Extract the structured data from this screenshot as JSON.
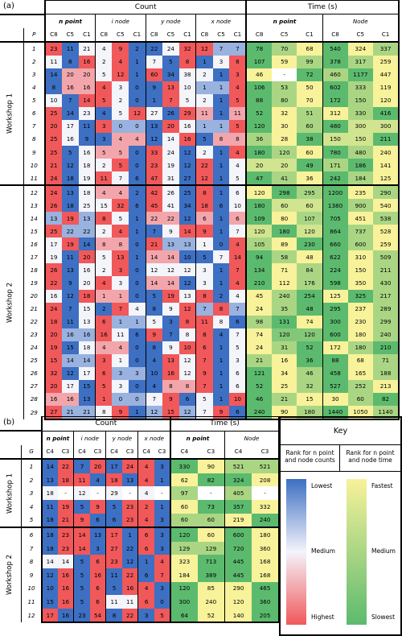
{
  "panel_a": {
    "label": "(a)",
    "count_header": "Count",
    "time_header": "Time (s)",
    "groups": [
      "n point",
      "i node",
      "y node",
      "x node",
      "n point",
      "Node"
    ],
    "P": "P",
    "cols": [
      "C8",
      "C5",
      "C1"
    ],
    "workshops": [
      "Workshop 1",
      "Workshop 2"
    ],
    "rows": [
      [
        "1",
        23,
        11,
        21,
        4,
        9,
        2,
        22,
        24,
        32,
        12,
        7,
        7,
        78,
        70,
        68,
        540,
        324,
        337
      ],
      [
        "2",
        11,
        8,
        16,
        2,
        4,
        1,
        7,
        5,
        8,
        1,
        3,
        8,
        107,
        59,
        99,
        378,
        317,
        259
      ],
      [
        "3",
        14,
        20,
        20,
        5,
        12,
        1,
        60,
        34,
        38,
        2,
        1,
        3,
        46,
        "-",
        72,
        460,
        1177,
        447
      ],
      [
        "4",
        8,
        16,
        16,
        4,
        3,
        0,
        9,
        13,
        10,
        1,
        1,
        4,
        106,
        53,
        50,
        602,
        333,
        119
      ],
      [
        "5",
        10,
        7,
        14,
        5,
        2,
        0,
        1,
        7,
        5,
        2,
        1,
        5,
        88,
        80,
        70,
        172,
        150,
        120
      ],
      [
        "6",
        25,
        14,
        23,
        4,
        5,
        12,
        27,
        26,
        29,
        11,
        1,
        11,
        52,
        32,
        51,
        312,
        330,
        416
      ],
      [
        "7",
        20,
        17,
        11,
        3,
        0,
        0,
        13,
        20,
        16,
        1,
        1,
        5,
        120,
        30,
        60,
        480,
        300,
        300
      ],
      [
        "8",
        25,
        16,
        9,
        3,
        4,
        4,
        12,
        14,
        16,
        5,
        8,
        8,
        36,
        28,
        38,
        150,
        150,
        211
      ],
      [
        "9",
        25,
        5,
        16,
        5,
        5,
        0,
        33,
        24,
        12,
        2,
        1,
        4,
        180,
        120,
        60,
        780,
        480,
        240
      ],
      [
        "10",
        21,
        12,
        18,
        2,
        5,
        0,
        23,
        19,
        12,
        22,
        1,
        4,
        20,
        20,
        49,
        171,
        186,
        141
      ],
      [
        "11",
        24,
        18,
        19,
        11,
        7,
        6,
        47,
        31,
        27,
        12,
        1,
        5,
        47,
        41,
        36,
        242,
        184,
        125
      ],
      [
        "12",
        24,
        13,
        18,
        4,
        4,
        2,
        42,
        26,
        25,
        8,
        1,
        6,
        120,
        298,
        295,
        1200,
        235,
        290
      ],
      [
        "13",
        26,
        18,
        25,
        15,
        32,
        6,
        45,
        41,
        34,
        18,
        6,
        10,
        180,
        60,
        60,
        1380,
        900,
        540
      ],
      [
        "14",
        13,
        19,
        13,
        8,
        5,
        1,
        22,
        22,
        12,
        6,
        1,
        6,
        109,
        80,
        107,
        705,
        451,
        538
      ],
      [
        "15",
        25,
        22,
        22,
        2,
        4,
        1,
        7,
        9,
        14,
        9,
        1,
        7,
        120,
        180,
        120,
        864,
        737,
        528
      ],
      [
        "16",
        17,
        19,
        14,
        8,
        8,
        0,
        21,
        13,
        13,
        1,
        0,
        4,
        105,
        89,
        230,
        660,
        600,
        259
      ],
      [
        "17",
        19,
        11,
        20,
        5,
        13,
        1,
        14,
        14,
        10,
        5,
        7,
        14,
        94,
        58,
        48,
        622,
        310,
        509
      ],
      [
        "18",
        26,
        13,
        16,
        2,
        3,
        0,
        12,
        12,
        12,
        3,
        1,
        7,
        134,
        71,
        84,
        224,
        150,
        211
      ],
      [
        "19",
        22,
        9,
        20,
        4,
        3,
        0,
        14,
        14,
        12,
        3,
        1,
        4,
        210,
        112,
        176,
        598,
        350,
        430
      ],
      [
        "20",
        16,
        12,
        18,
        1,
        1,
        0,
        5,
        19,
        13,
        8,
        2,
        4,
        45,
        240,
        254,
        125,
        325,
        217
      ],
      [
        "21",
        24,
        7,
        15,
        2,
        7,
        4,
        8,
        9,
        12,
        7,
        8,
        7,
        24,
        35,
        48,
        295,
        237,
        289
      ],
      [
        "22",
        18,
        11,
        13,
        6,
        1,
        1,
        5,
        3,
        8,
        11,
        8,
        6,
        98,
        131,
        74,
        300,
        230,
        299
      ],
      [
        "23",
        20,
        16,
        16,
        16,
        11,
        6,
        9,
        7,
        8,
        8,
        4,
        7,
        74,
        120,
        120,
        600,
        180,
        240
      ],
      [
        "24",
        19,
        15,
        18,
        4,
        4,
        0,
        8,
        9,
        10,
        6,
        1,
        5,
        24,
        31,
        52,
        172,
        180,
        210
      ],
      [
        "25",
        15,
        14,
        14,
        3,
        1,
        0,
        4,
        13,
        12,
        7,
        1,
        3,
        21,
        16,
        36,
        88,
        68,
        71
      ],
      [
        "26",
        32,
        12,
        17,
        6,
        3,
        3,
        10,
        16,
        12,
        9,
        1,
        6,
        121,
        34,
        46,
        458,
        165,
        188
      ],
      [
        "27",
        20,
        17,
        15,
        5,
        3,
        0,
        4,
        8,
        8,
        7,
        1,
        6,
        52,
        25,
        32,
        527,
        252,
        213
      ],
      [
        "28",
        16,
        16,
        13,
        1,
        0,
        0,
        7,
        9,
        6,
        5,
        1,
        10,
        46,
        21,
        15,
        30,
        60,
        82
      ],
      [
        "29",
        27,
        21,
        21,
        8,
        9,
        1,
        12,
        15,
        12,
        7,
        9,
        6,
        240,
        90,
        180,
        1440,
        1050,
        1140
      ]
    ]
  },
  "panel_b": {
    "label": "(b)",
    "count_header": "Count",
    "time_header": "Time (s)",
    "key_header": "Key",
    "groups": [
      "n point",
      "i node",
      "y node",
      "x node",
      "n point",
      "Node"
    ],
    "G": "G",
    "cols": [
      "C4",
      "C3"
    ],
    "workshops": [
      "Workshop 1",
      "Workshop 2"
    ],
    "rows": [
      [
        "1",
        14,
        22,
        7,
        20,
        17,
        24,
        4,
        3,
        330,
        90,
        521,
        521
      ],
      [
        "2",
        13,
        18,
        11,
        4,
        18,
        13,
        4,
        1,
        62,
        82,
        324,
        208
      ],
      [
        "3",
        18,
        "-",
        12,
        "-",
        29,
        "-",
        4,
        "-",
        97,
        "-",
        405,
        "-"
      ],
      [
        "4",
        11,
        19,
        5,
        9,
        5,
        23,
        2,
        1,
        60,
        73,
        357,
        332
      ],
      [
        "5",
        18,
        21,
        9,
        6,
        6,
        23,
        4,
        3,
        60,
        60,
        219,
        240
      ],
      [
        "6",
        18,
        23,
        14,
        13,
        17,
        1,
        6,
        3,
        120,
        60,
        600,
        180
      ],
      [
        "7",
        18,
        23,
        14,
        3,
        27,
        22,
        6,
        3,
        129,
        129,
        720,
        360
      ],
      [
        "8",
        14,
        14,
        5,
        6,
        23,
        12,
        1,
        4,
        323,
        713,
        445,
        168
      ],
      [
        "9",
        12,
        16,
        5,
        16,
        11,
        22,
        6,
        7,
        184,
        389,
        445,
        168
      ],
      [
        "10",
        10,
        16,
        5,
        6,
        5,
        16,
        4,
        3,
        120,
        85,
        290,
        465
      ],
      [
        "11",
        15,
        16,
        5,
        6,
        11,
        11,
        6,
        0,
        300,
        240,
        120,
        360
      ],
      [
        "12",
        17,
        16,
        23,
        54,
        8,
        22,
        3,
        5,
        64,
        52,
        140,
        205
      ]
    ],
    "key": {
      "rank_count_title": "Rank for n point and node counts",
      "rank_time_title": "Rank for n point and node time",
      "count_labels": [
        "Lowest",
        "Medium",
        "Highest"
      ],
      "time_labels": [
        "Fastest",
        "Medium",
        "Slowest"
      ]
    }
  },
  "colors": {
    "blue": "#3d6fc2",
    "red": "#f0585a",
    "yellow": "#f8f29a",
    "green": "#5cba6e"
  }
}
